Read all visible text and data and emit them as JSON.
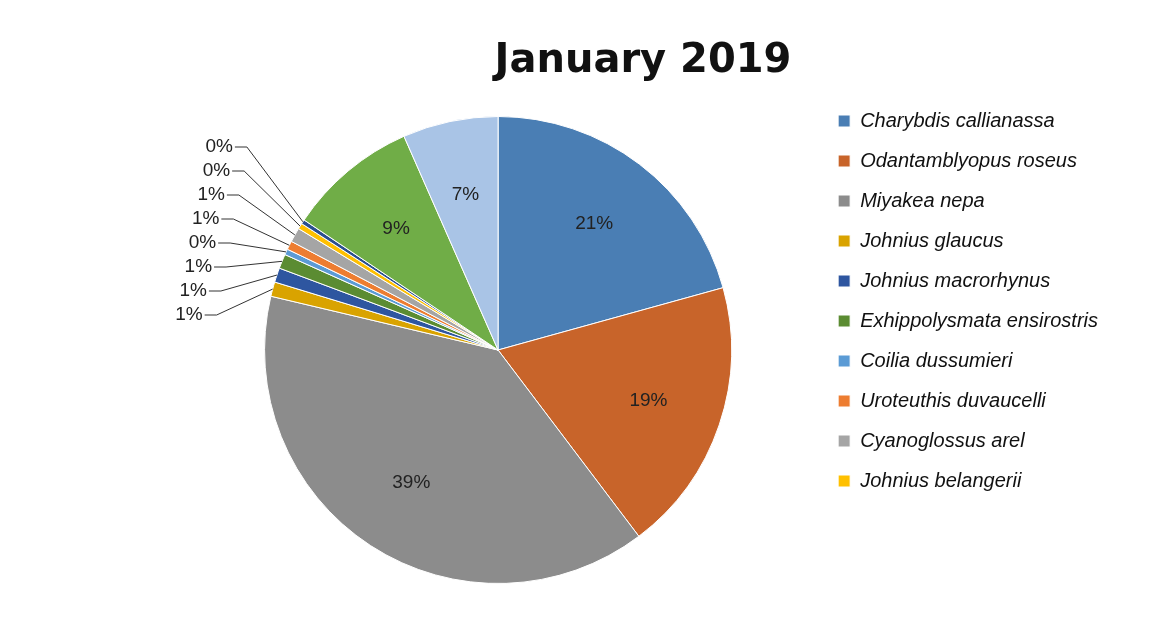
{
  "chart_data": {
    "type": "pie",
    "title": "January 2019",
    "categories": [
      "Charybdis callianassa",
      "Odantamblyopus roseus",
      "Miyakea nepa",
      "Johnius glaucus",
      "Johnius macrorhynus",
      "Exhippolysmata ensirostris",
      "Coilia dussumieri",
      "Uroteuthis duvaucelli",
      "Cyanoglossus arel",
      "Johnius belangerii",
      null,
      null,
      null
    ],
    "values": [
      20.7,
      19,
      39,
      1,
      1,
      1,
      0.4,
      0.6,
      1,
      0.4,
      0.3,
      9,
      6.6
    ],
    "value_labels": [
      "21%",
      "19%",
      "39%",
      "1%",
      "1%",
      "1%",
      "0%",
      "1%",
      "1%",
      "0%",
      "0%",
      "9%",
      "7%"
    ],
    "colors": [
      "#4a7eb4",
      "#c8642a",
      "#8c8c8c",
      "#d9a300",
      "#2e56a0",
      "#5b8c32",
      "#5b9bd5",
      "#ed7d31",
      "#a5a5a5",
      "#ffc000",
      "#2a4f8f",
      "#70ad47",
      "#a9c4e6"
    ],
    "legend": "right"
  }
}
